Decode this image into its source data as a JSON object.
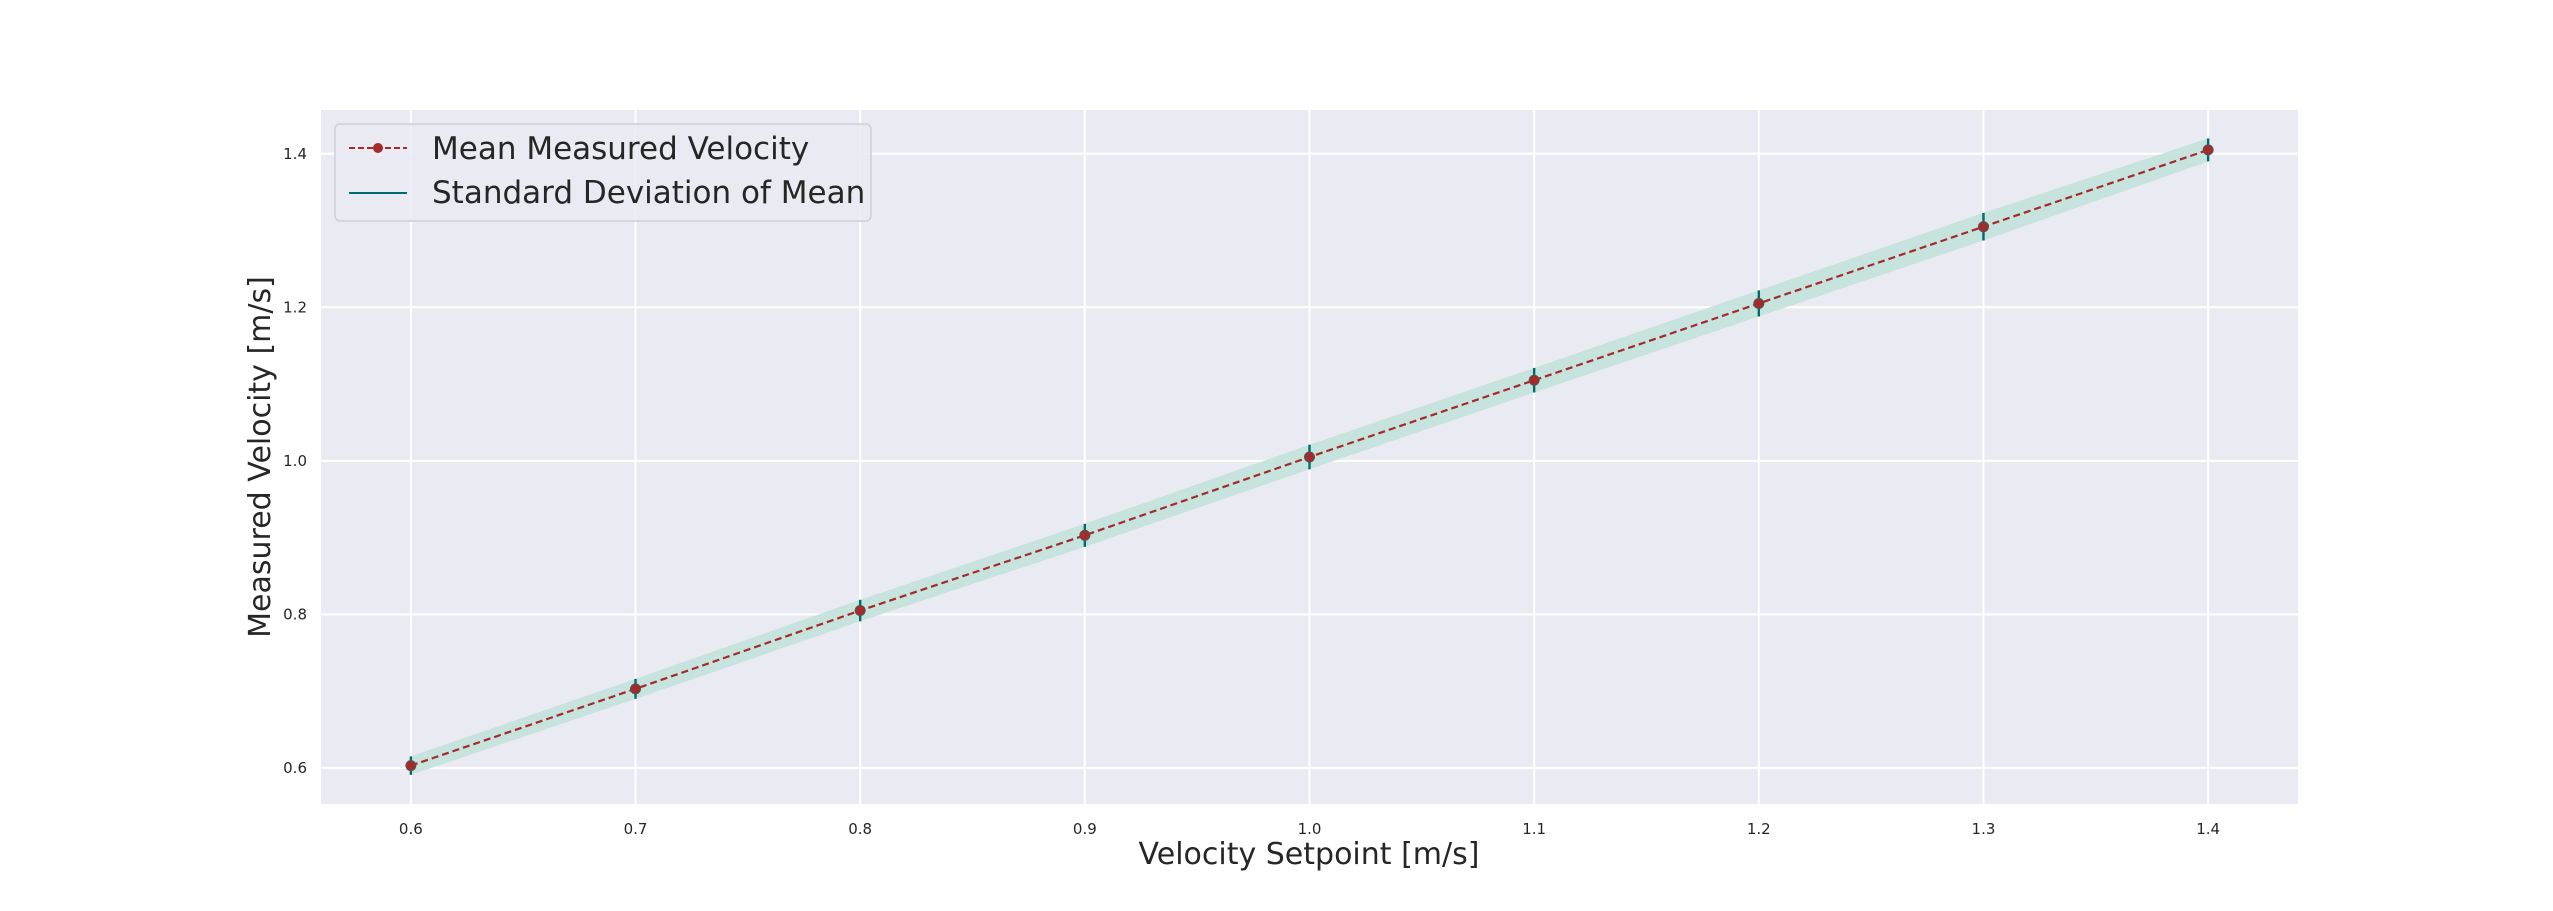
{
  "chart_data": {
    "type": "line",
    "title": "",
    "xlabel": "Velocity Setpoint [m/s]",
    "ylabel": "Measured Velocity [m/s]",
    "xlim": [
      0.56,
      1.44
    ],
    "ylim": [
      0.553,
      1.457
    ],
    "xticks": [
      "0.6",
      "0.7",
      "0.8",
      "0.9",
      "1.0",
      "1.1",
      "1.2",
      "1.3",
      "1.4"
    ],
    "yticks": [
      "0.6",
      "0.8",
      "1.0",
      "1.2",
      "1.4"
    ],
    "grid": true,
    "legend_position": "top-left",
    "series": [
      {
        "name": "Mean Measured Velocity",
        "style": "dashed line with circle markers",
        "color": "#a52a2a",
        "x": [
          0.6,
          0.7,
          0.8,
          0.9,
          1.0,
          1.1,
          1.2,
          1.3,
          1.4
        ],
        "y": [
          0.603,
          0.703,
          0.805,
          0.903,
          1.005,
          1.105,
          1.205,
          1.305,
          1.405
        ]
      },
      {
        "name": "Standard Deviation of Mean",
        "style": "error bars with shaded band",
        "color": "#006b6b",
        "band_color": "#c5e3dc",
        "x": [
          0.6,
          0.7,
          0.8,
          0.9,
          1.0,
          1.1,
          1.2,
          1.3,
          1.4
        ],
        "std": [
          0.012,
          0.013,
          0.014,
          0.015,
          0.016,
          0.016,
          0.017,
          0.018,
          0.015
        ]
      }
    ]
  }
}
